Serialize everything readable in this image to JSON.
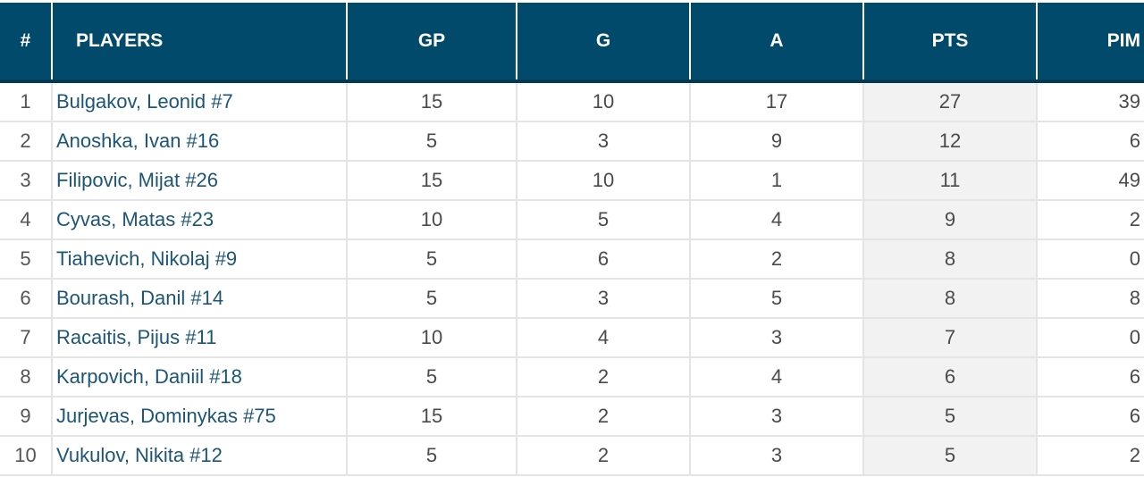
{
  "columns": {
    "rank": "#",
    "player": "PLAYERS",
    "gp": "GP",
    "g": "G",
    "a": "A",
    "pts": "PTS",
    "pim": "PIM"
  },
  "rows": [
    {
      "rank": "1",
      "player": "Bulgakov, Leonid #7",
      "gp": "15",
      "g": "10",
      "a": "17",
      "pts": "27",
      "pim": "39"
    },
    {
      "rank": "2",
      "player": "Anoshka, Ivan #16",
      "gp": "5",
      "g": "3",
      "a": "9",
      "pts": "12",
      "pim": "6"
    },
    {
      "rank": "3",
      "player": "Filipovic, Mijat #26",
      "gp": "15",
      "g": "10",
      "a": "1",
      "pts": "11",
      "pim": "49"
    },
    {
      "rank": "4",
      "player": "Cyvas, Matas #23",
      "gp": "10",
      "g": "5",
      "a": "4",
      "pts": "9",
      "pim": "2"
    },
    {
      "rank": "5",
      "player": "Tiahevich, Nikolaj #9",
      "gp": "5",
      "g": "6",
      "a": "2",
      "pts": "8",
      "pim": "0"
    },
    {
      "rank": "6",
      "player": "Bourash, Danil #14",
      "gp": "5",
      "g": "3",
      "a": "5",
      "pts": "8",
      "pim": "8"
    },
    {
      "rank": "7",
      "player": "Racaitis, Pijus #11",
      "gp": "10",
      "g": "4",
      "a": "3",
      "pts": "7",
      "pim": "0"
    },
    {
      "rank": "8",
      "player": "Karpovich, Daniil #18",
      "gp": "5",
      "g": "2",
      "a": "4",
      "pts": "6",
      "pim": "6"
    },
    {
      "rank": "9",
      "player": "Jurjevas, Dominykas #75",
      "gp": "15",
      "g": "2",
      "a": "3",
      "pts": "5",
      "pim": "6"
    },
    {
      "rank": "10",
      "player": "Vukulov, Nikita #12",
      "gp": "5",
      "g": "2",
      "a": "3",
      "pts": "5",
      "pim": "2"
    }
  ],
  "colors": {
    "header_bg": "#024a6b",
    "header_text": "#ffffff",
    "player_link": "#1b5577",
    "pts_highlight": "#f2f2f2"
  }
}
